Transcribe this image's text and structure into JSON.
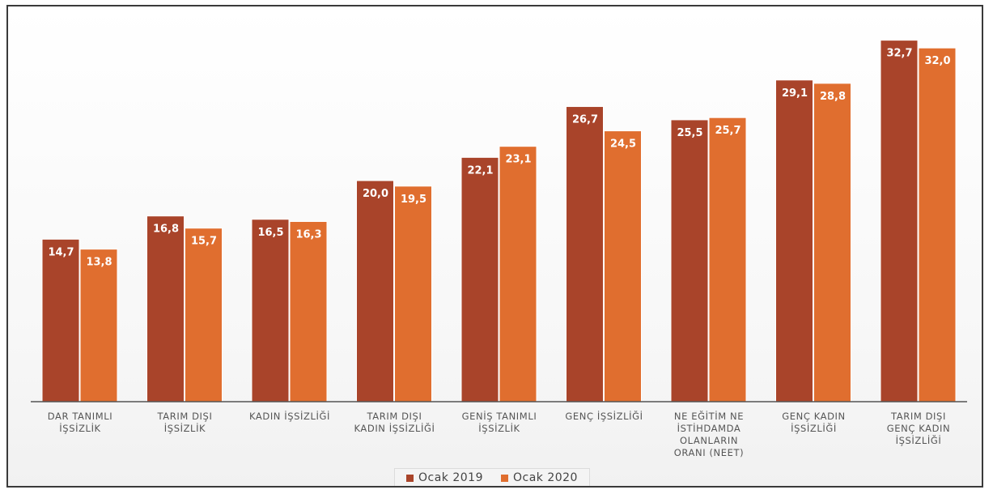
{
  "chart_data": {
    "type": "bar",
    "categories": [
      [
        "DAR TANIMLI",
        "İŞSİZLİK"
      ],
      [
        "TARIM DIŞI",
        "İŞSİZLİK"
      ],
      [
        "KADIN İŞSİZLİĞİ"
      ],
      [
        "TARIM DIŞI",
        "KADIN İŞSİZLİĞİ"
      ],
      [
        "GENİŞ TANIMLI",
        "İŞSİZLİK"
      ],
      [
        "GENÇ İŞSİZLİĞİ"
      ],
      [
        "NE EĞİTİM NE",
        "İSTİHDAMDA",
        "OLANLARIN",
        "ORANI (NEET)"
      ],
      [
        "GENÇ KADIN",
        "İŞSİZLİĞİ"
      ],
      [
        "TARIM DIŞI",
        "GENÇ KADIN",
        "İŞSİZLİĞİ"
      ]
    ],
    "series": [
      {
        "name": "Ocak 2019",
        "color": "#a9442a",
        "values": [
          14.7,
          16.8,
          16.5,
          20.0,
          22.1,
          26.7,
          25.5,
          29.1,
          32.7
        ],
        "labels": [
          "14,7",
          "16,8",
          "16,5",
          "20,0",
          "22,1",
          "26,7",
          "25,5",
          "29,1",
          "32,7"
        ]
      },
      {
        "name": "Ocak 2020",
        "color": "#e06e2f",
        "values": [
          13.8,
          15.7,
          16.3,
          19.5,
          23.1,
          24.5,
          25.7,
          28.8,
          32.0
        ],
        "labels": [
          "13,8",
          "15,7",
          "16,3",
          "19,5",
          "23,1",
          "24,5",
          "25,7",
          "28,8",
          "32,0"
        ]
      }
    ],
    "title": "",
    "xlabel": "",
    "ylabel": "",
    "ylim": [
      0,
      35
    ],
    "grid": false,
    "legend_position": "bottom"
  },
  "legend": {
    "items": [
      {
        "label": "Ocak 2019",
        "color": "#a9442a"
      },
      {
        "label": "Ocak 2020",
        "color": "#e06e2f"
      }
    ]
  }
}
